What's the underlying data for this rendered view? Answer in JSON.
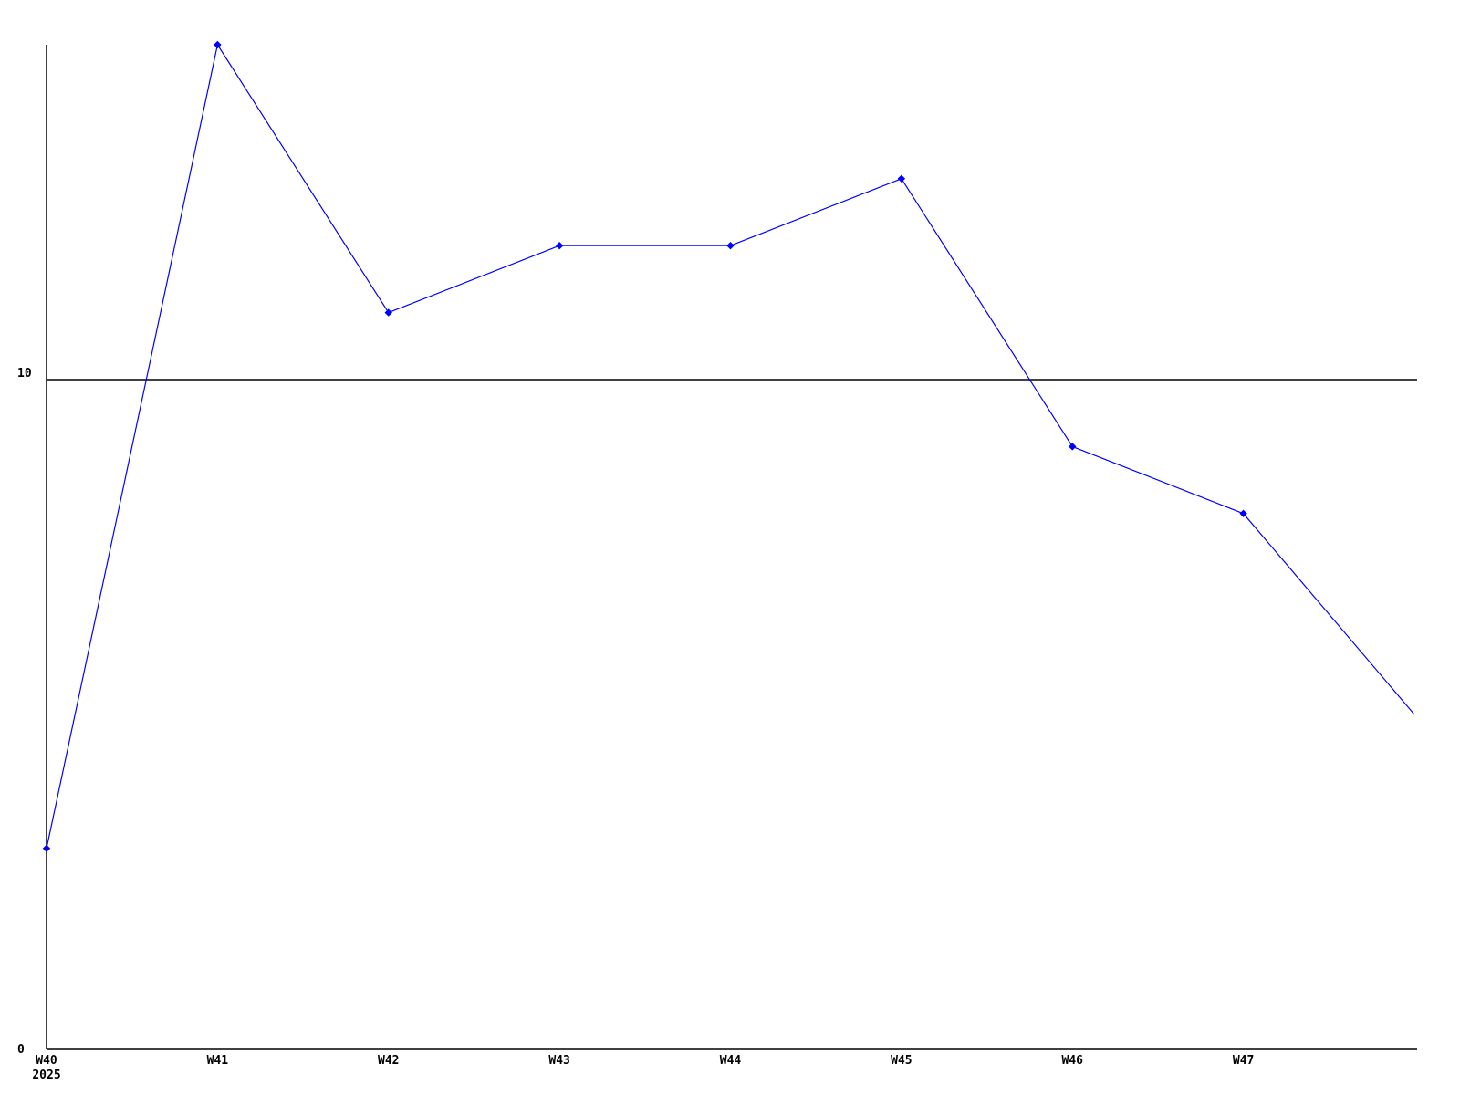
{
  "page": {
    "background_color": "#ffffff"
  },
  "chart_data": {
    "type": "line",
    "categories": [
      "W40",
      "W41",
      "W42",
      "W43",
      "W44",
      "W45",
      "W46",
      "W47",
      ""
    ],
    "values": [
      3,
      15,
      11,
      12,
      12,
      13,
      9,
      8,
      5
    ],
    "x_first_label_year": "2025",
    "ytick_labels": [
      "0",
      "10"
    ],
    "ytick_values": [
      0,
      10
    ],
    "ylim": [
      0,
      15
    ],
    "reference_line_value": 10,
    "line_color": "#0000ff",
    "marker_color": "#0000ff",
    "marker_shape": "diamond",
    "axis_color": "#000000",
    "text_color": "#000000",
    "grid": "off",
    "legend": "off"
  }
}
